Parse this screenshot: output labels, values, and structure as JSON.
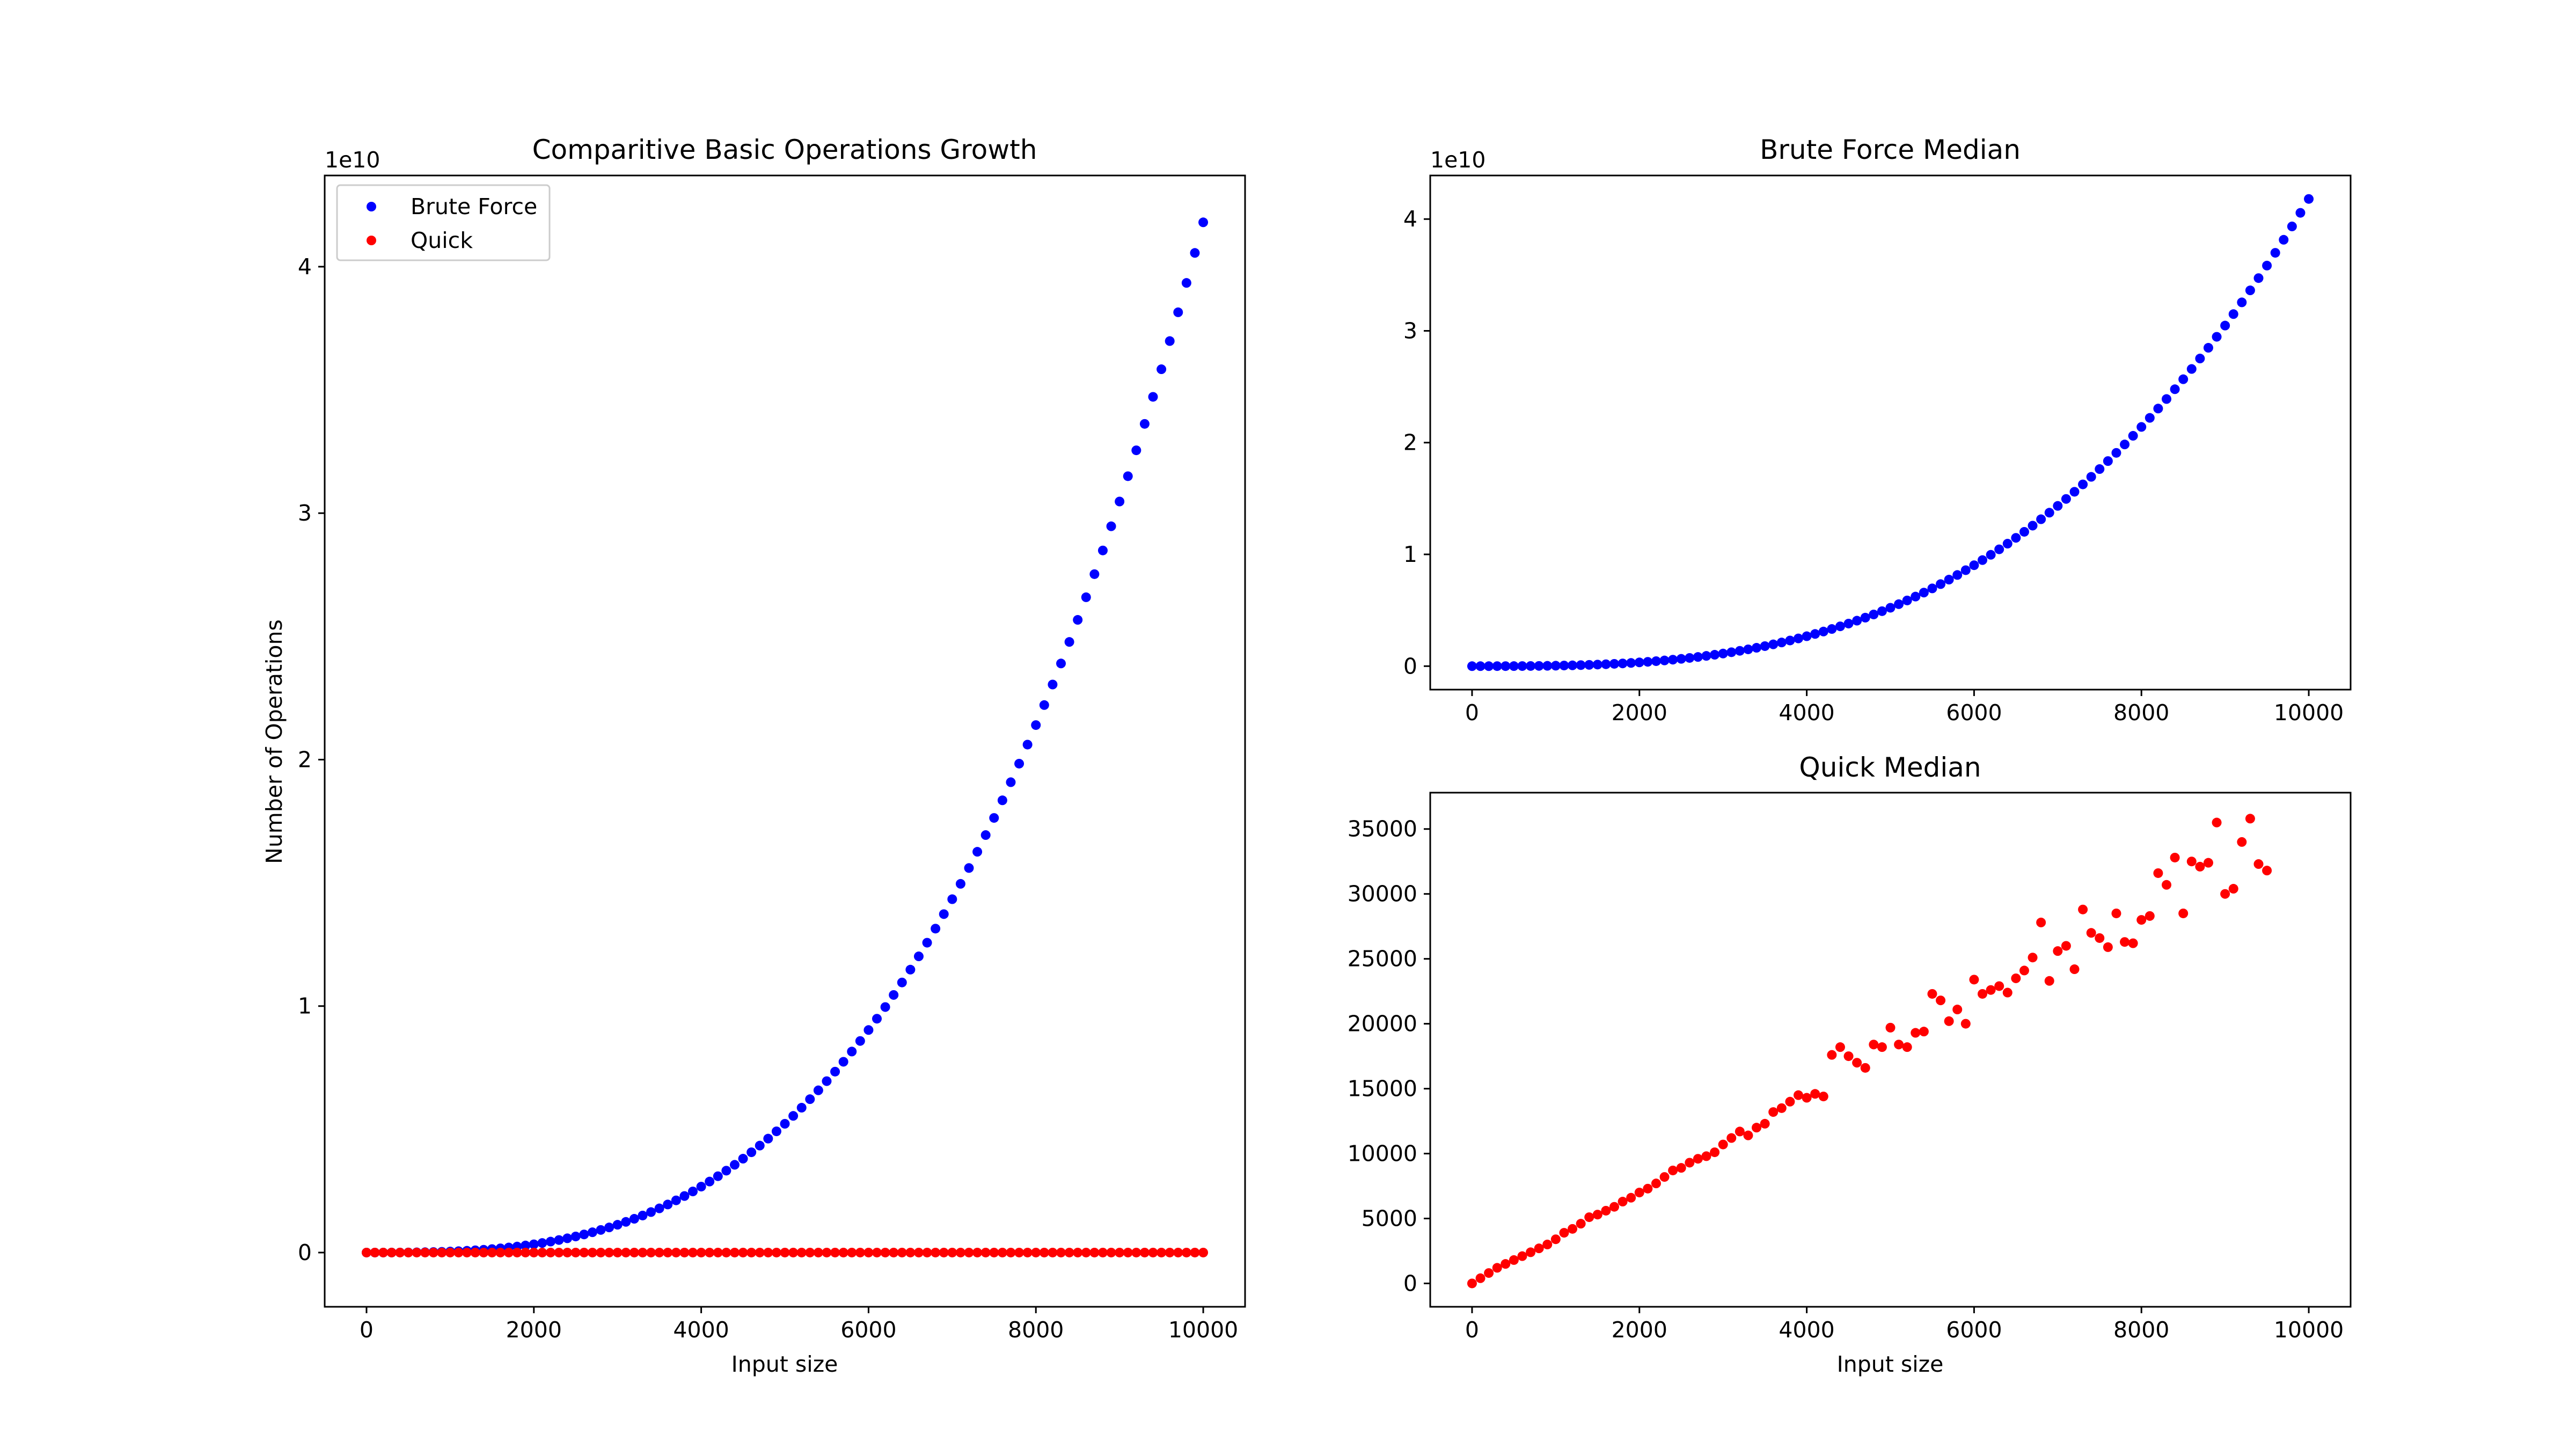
{
  "chart_data": [
    {
      "type": "scatter",
      "title": "Comparitive Basic Operations Growth",
      "xlabel": "Input size",
      "ylabel": "Number of Operations",
      "offset_label": "1e10",
      "xlim": [
        -500,
        10500
      ],
      "ylim": [
        -2.2,
        43.7
      ],
      "xticks": [
        0,
        2000,
        4000,
        6000,
        8000,
        10000
      ],
      "yticks": [
        0,
        10,
        20,
        30,
        40
      ],
      "xtick_labels": [
        "0",
        "2000",
        "4000",
        "6000",
        "8000",
        "10000"
      ],
      "ytick_labels": [
        "0",
        "1",
        "2",
        "3",
        "4"
      ],
      "legend": {
        "placement": "top-left",
        "entries": [
          "Brute Force",
          "Quick"
        ]
      },
      "series": [
        {
          "name": "Brute Force",
          "color": "#0000ff",
          "x_start": 0,
          "x_step": 100,
          "count": 101,
          "formula": "41.8 * (x/10000)^3",
          "unit_note": "y in units of 1e9"
        },
        {
          "name": "Quick",
          "color": "#ff0000",
          "x_start": 0,
          "x_step": 100,
          "count": 101,
          "formula": "0",
          "unit_note": "y in units of 1e9"
        }
      ]
    },
    {
      "type": "scatter",
      "title": "Brute Force Median",
      "xlabel": "",
      "ylabel": "",
      "offset_label": "1e10",
      "xlim": [
        -500,
        10500
      ],
      "ylim": [
        -2.1,
        43.9
      ],
      "xticks": [
        0,
        2000,
        4000,
        6000,
        8000,
        10000
      ],
      "yticks": [
        0,
        10,
        20,
        30,
        40
      ],
      "xtick_labels": [
        "0",
        "2000",
        "4000",
        "6000",
        "8000",
        "10000"
      ],
      "ytick_labels": [
        "0",
        "1",
        "2",
        "3",
        "4"
      ],
      "series": [
        {
          "color": "#0000ff",
          "x_start": 0,
          "x_step": 100,
          "count": 101,
          "formula": "41.8 * (x/10000)^3"
        }
      ]
    },
    {
      "type": "scatter",
      "title": "Quick Median",
      "xlabel": "Input size",
      "ylabel": "",
      "xlim": [
        -500,
        10500
      ],
      "ylim": [
        -1800,
        37800
      ],
      "xticks": [
        0,
        2000,
        4000,
        6000,
        8000,
        10000
      ],
      "yticks": [
        0,
        5000,
        10000,
        15000,
        20000,
        25000,
        30000,
        35000
      ],
      "xtick_labels": [
        "0",
        "2000",
        "4000",
        "6000",
        "8000",
        "10000"
      ],
      "ytick_labels": [
        "0",
        "5000",
        "10000",
        "15000",
        "20000",
        "25000",
        "30000",
        "35000"
      ],
      "series": [
        {
          "color": "#ff0000",
          "x_start": 0,
          "x_step": 100,
          "values": [
            0,
            400,
            800,
            1200,
            1500,
            1800,
            2100,
            2400,
            2700,
            3000,
            3400,
            3900,
            4200,
            4600,
            5100,
            5300,
            5600,
            5900,
            6300,
            6600,
            7000,
            7300,
            7700,
            8200,
            8700,
            8900,
            9300,
            9600,
            9800,
            10100,
            10700,
            11200,
            11700,
            11400,
            12000,
            12300,
            13200,
            13500,
            14000,
            14500,
            14300,
            14600,
            14400,
            17600,
            18200,
            17500,
            17000,
            16600,
            18400,
            18200,
            19700,
            18400,
            18200,
            19300,
            19400,
            22300,
            21800,
            20200,
            21100,
            20000,
            23400,
            22300,
            22600,
            22900,
            22400,
            23500,
            24100,
            25100,
            27800,
            23300,
            25600,
            26000,
            24200,
            28800,
            27000,
            26600,
            25900,
            28500,
            26300,
            26200,
            28000,
            28300,
            31600,
            30700,
            32800,
            28500,
            32500,
            32100,
            32400,
            35500,
            30000,
            30400,
            34000,
            35800,
            32300,
            31800
          ]
        }
      ]
    }
  ]
}
